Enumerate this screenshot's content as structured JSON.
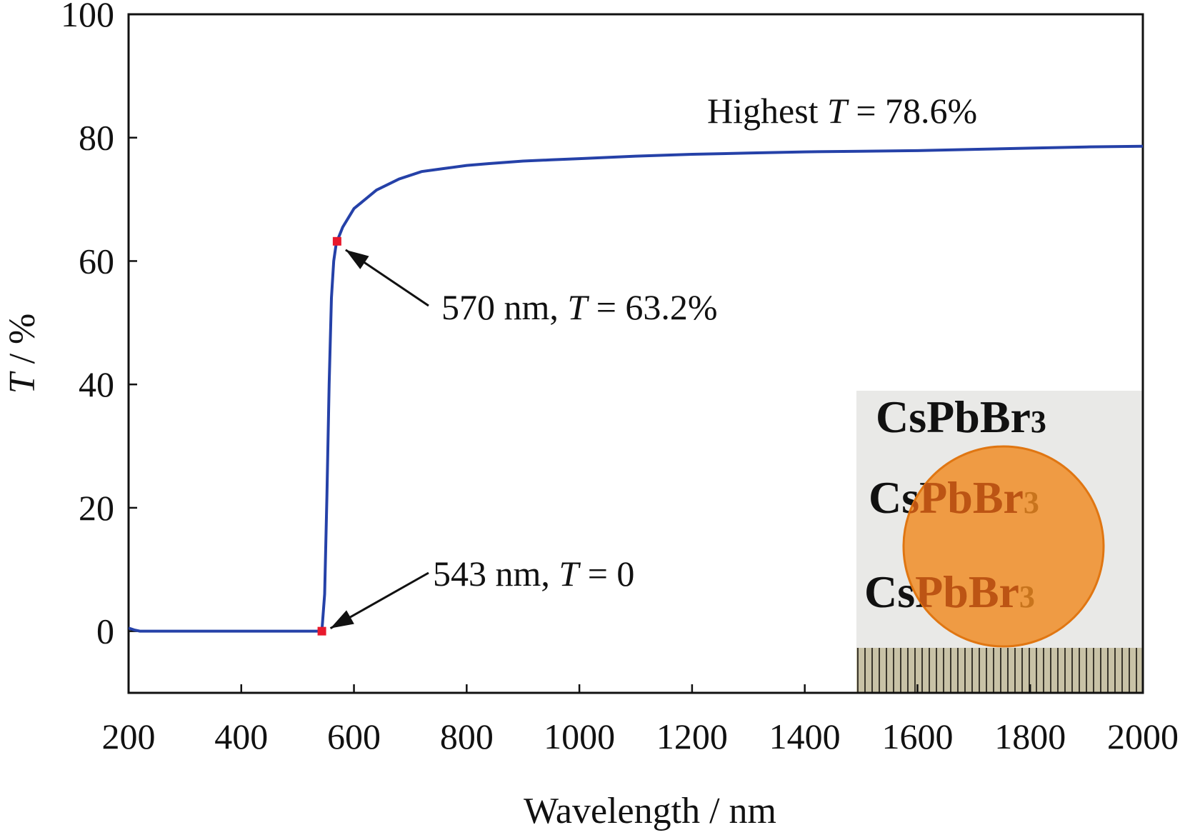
{
  "chart_data": {
    "type": "line",
    "xlabel_italic": "",
    "xlabel": "Wavelength / nm",
    "ylabel_italic": "T",
    "ylabel_rest": " / %",
    "xlim": [
      200,
      2000
    ],
    "ylim": [
      -10,
      100
    ],
    "x_ticks": [
      200,
      400,
      600,
      800,
      1000,
      1200,
      1400,
      1600,
      1800,
      2000
    ],
    "y_ticks": [
      0,
      20,
      40,
      60,
      80,
      100
    ],
    "grid": false,
    "series": [
      {
        "color": "#2541a8",
        "x": [
          200,
          210,
          220,
          300,
          400,
          500,
          540,
          543,
          548,
          552,
          556,
          560,
          564,
          568,
          570,
          580,
          600,
          640,
          680,
          720,
          760,
          800,
          840,
          870,
          900,
          950,
          1000,
          1100,
          1200,
          1300,
          1400,
          1500,
          1600,
          1700,
          1800,
          1900,
          2000
        ],
        "y": [
          0.5,
          0.2,
          0.0,
          0.0,
          0.0,
          0.0,
          0.0,
          0.0,
          6.0,
          22.0,
          40.0,
          54.0,
          60.0,
          62.5,
          63.2,
          65.5,
          68.5,
          71.5,
          73.3,
          74.5,
          75.0,
          75.5,
          75.8,
          76.0,
          76.2,
          76.4,
          76.6,
          77.0,
          77.3,
          77.5,
          77.7,
          77.8,
          77.9,
          78.1,
          78.3,
          78.5,
          78.6
        ]
      }
    ],
    "markers": [
      {
        "x": 543,
        "y": 0,
        "color": "#e8192c"
      },
      {
        "x": 570,
        "y": 63.2,
        "color": "#e8192c"
      }
    ],
    "annotations": [
      {
        "id": "low",
        "text": "543 nm, ",
        "italic": "T",
        "rest": " = 0",
        "x": 543,
        "y": 0
      },
      {
        "id": "mid",
        "text": "570 nm, ",
        "italic": "T",
        "rest": " = 63.2%",
        "x": 570,
        "y": 63.2
      },
      {
        "id": "high",
        "text": "Highest ",
        "italic": "T",
        "rest": " = 78.6%"
      }
    ],
    "inset": {
      "lines": [
        "CsPbBr",
        "CsPbBr",
        "CsPbBr"
      ],
      "subscript": "3",
      "disc_color": "#f08a20",
      "ruler_color": "#c5bfa3"
    }
  }
}
